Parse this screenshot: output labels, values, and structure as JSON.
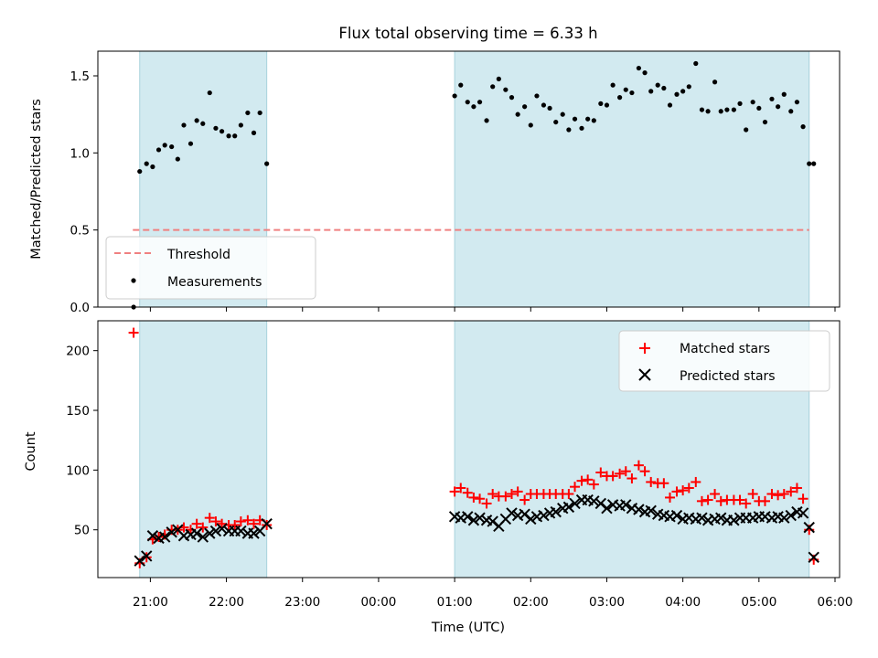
{
  "chart_data": {
    "type": "scatter",
    "title": "Flux total observing time = 6.33 h",
    "xlabel": "Time (UTC)",
    "x_ticks": [
      "21:00",
      "22:00",
      "23:00",
      "00:00",
      "01:00",
      "02:00",
      "03:00",
      "04:00",
      "05:00",
      "06:00"
    ],
    "xlim_hours": [
      20.31,
      30.06
    ],
    "shaded_spans_hours": [
      [
        20.86,
        22.53
      ],
      [
        25.0,
        29.66
      ]
    ],
    "span_color": "#d2eaf0",
    "top": {
      "ylabel": "Matched/Predicted stars",
      "ylim": [
        0,
        1.66
      ],
      "y_ticks": [
        0.0,
        0.5,
        1.0,
        1.5
      ],
      "y_tick_labels": [
        "0.0",
        "0.5",
        "1.0",
        "1.5"
      ],
      "threshold": {
        "name": "Threshold",
        "value": 0.5,
        "x_start": 20.77,
        "x_end": 29.66,
        "color": "#f08080"
      },
      "measurements": {
        "name": "Measurements",
        "color": "#000000",
        "points": [
          [
            20.78,
            0.0
          ],
          [
            20.86,
            0.88
          ],
          [
            20.95,
            0.93
          ],
          [
            21.03,
            0.91
          ],
          [
            21.11,
            1.02
          ],
          [
            21.19,
            1.05
          ],
          [
            21.28,
            1.04
          ],
          [
            21.36,
            0.96
          ],
          [
            21.44,
            1.18
          ],
          [
            21.53,
            1.06
          ],
          [
            21.61,
            1.21
          ],
          [
            21.69,
            1.19
          ],
          [
            21.78,
            1.39
          ],
          [
            21.86,
            1.16
          ],
          [
            21.94,
            1.14
          ],
          [
            22.03,
            1.11
          ],
          [
            22.11,
            1.11
          ],
          [
            22.19,
            1.18
          ],
          [
            22.28,
            1.26
          ],
          [
            22.36,
            1.13
          ],
          [
            22.44,
            1.26
          ],
          [
            22.53,
            0.93
          ],
          [
            25.0,
            1.37
          ],
          [
            25.08,
            1.44
          ],
          [
            25.17,
            1.33
          ],
          [
            25.25,
            1.3
          ],
          [
            25.33,
            1.33
          ],
          [
            25.42,
            1.21
          ],
          [
            25.5,
            1.43
          ],
          [
            25.58,
            1.48
          ],
          [
            25.67,
            1.41
          ],
          [
            25.75,
            1.36
          ],
          [
            25.83,
            1.25
          ],
          [
            25.92,
            1.3
          ],
          [
            26.0,
            1.18
          ],
          [
            26.08,
            1.37
          ],
          [
            26.17,
            1.31
          ],
          [
            26.25,
            1.29
          ],
          [
            26.33,
            1.2
          ],
          [
            26.42,
            1.25
          ],
          [
            26.5,
            1.15
          ],
          [
            26.58,
            1.22
          ],
          [
            26.67,
            1.16
          ],
          [
            26.75,
            1.22
          ],
          [
            26.83,
            1.21
          ],
          [
            26.92,
            1.32
          ],
          [
            27.0,
            1.31
          ],
          [
            27.08,
            1.44
          ],
          [
            27.17,
            1.36
          ],
          [
            27.25,
            1.41
          ],
          [
            27.33,
            1.39
          ],
          [
            27.42,
            1.55
          ],
          [
            27.5,
            1.52
          ],
          [
            27.58,
            1.4
          ],
          [
            27.67,
            1.44
          ],
          [
            27.75,
            1.42
          ],
          [
            27.83,
            1.31
          ],
          [
            27.92,
            1.38
          ],
          [
            28.0,
            1.4
          ],
          [
            28.08,
            1.43
          ],
          [
            28.17,
            1.58
          ],
          [
            28.25,
            1.28
          ],
          [
            28.33,
            1.27
          ],
          [
            28.42,
            1.46
          ],
          [
            28.5,
            1.27
          ],
          [
            28.58,
            1.28
          ],
          [
            28.67,
            1.28
          ],
          [
            28.75,
            1.32
          ],
          [
            28.83,
            1.15
          ],
          [
            28.92,
            1.33
          ],
          [
            29.0,
            1.29
          ],
          [
            29.08,
            1.2
          ],
          [
            29.17,
            1.35
          ],
          [
            29.25,
            1.3
          ],
          [
            29.33,
            1.38
          ],
          [
            29.42,
            1.27
          ],
          [
            29.5,
            1.33
          ],
          [
            29.58,
            1.17
          ],
          [
            29.66,
            0.93
          ],
          [
            29.72,
            0.93
          ]
        ]
      },
      "legend": {
        "placement": "lower-left",
        "entries": [
          "Threshold",
          "Measurements"
        ]
      }
    },
    "bottom": {
      "ylabel": "Count",
      "ylim": [
        10,
        225
      ],
      "y_ticks": [
        50,
        100,
        150,
        200
      ],
      "y_tick_labels": [
        "50",
        "100",
        "150",
        "200"
      ],
      "series": [
        {
          "name": "Matched stars",
          "marker": "plus",
          "color": "#ff0000",
          "points": [
            [
              20.78,
              215
            ],
            [
              20.86,
              22
            ],
            [
              20.95,
              27
            ],
            [
              21.03,
              42
            ],
            [
              21.11,
              44
            ],
            [
              21.19,
              46
            ],
            [
              21.28,
              50
            ],
            [
              21.36,
              50
            ],
            [
              21.44,
              52
            ],
            [
              21.53,
              50
            ],
            [
              21.61,
              55
            ],
            [
              21.69,
              52
            ],
            [
              21.78,
              60
            ],
            [
              21.86,
              57
            ],
            [
              21.94,
              55
            ],
            [
              22.03,
              54
            ],
            [
              22.11,
              54
            ],
            [
              22.19,
              57
            ],
            [
              22.28,
              58
            ],
            [
              22.36,
              55
            ],
            [
              22.44,
              58
            ],
            [
              22.53,
              54
            ],
            [
              25.0,
              82
            ],
            [
              25.08,
              85
            ],
            [
              25.17,
              81
            ],
            [
              25.25,
              77
            ],
            [
              25.33,
              76
            ],
            [
              25.42,
              72
            ],
            [
              25.5,
              80
            ],
            [
              25.58,
              78
            ],
            [
              25.67,
              78
            ],
            [
              25.75,
              80
            ],
            [
              25.83,
              82
            ],
            [
              25.92,
              75
            ],
            [
              26.0,
              80
            ],
            [
              26.08,
              80
            ],
            [
              26.17,
              80
            ],
            [
              26.25,
              80
            ],
            [
              26.33,
              80
            ],
            [
              26.42,
              80
            ],
            [
              26.5,
              80
            ],
            [
              26.58,
              86
            ],
            [
              26.67,
              91
            ],
            [
              26.75,
              92
            ],
            [
              26.83,
              88
            ],
            [
              26.92,
              98
            ],
            [
              27.0,
              95
            ],
            [
              27.08,
              95
            ],
            [
              27.17,
              97
            ],
            [
              27.25,
              99
            ],
            [
              27.33,
              93
            ],
            [
              27.42,
              104
            ],
            [
              27.5,
              99
            ],
            [
              27.58,
              90
            ],
            [
              27.67,
              89
            ],
            [
              27.75,
              89
            ],
            [
              27.83,
              77
            ],
            [
              27.92,
              82
            ],
            [
              28.0,
              83
            ],
            [
              28.08,
              85
            ],
            [
              28.17,
              90
            ],
            [
              28.25,
              74
            ],
            [
              28.33,
              75
            ],
            [
              28.42,
              80
            ],
            [
              28.5,
              74
            ],
            [
              28.58,
              75
            ],
            [
              28.67,
              75
            ],
            [
              28.75,
              75
            ],
            [
              28.83,
              72
            ],
            [
              28.92,
              80
            ],
            [
              29.0,
              74
            ],
            [
              29.08,
              74
            ],
            [
              29.17,
              80
            ],
            [
              29.25,
              79
            ],
            [
              29.33,
              80
            ],
            [
              29.42,
              82
            ],
            [
              29.5,
              85
            ],
            [
              29.58,
              76
            ],
            [
              29.66,
              50
            ],
            [
              29.72,
              25
            ]
          ]
        },
        {
          "name": "Predicted stars",
          "marker": "x",
          "color": "#000000",
          "points": [
            [
              20.86,
              24
            ],
            [
              20.95,
              28
            ],
            [
              21.03,
              45
            ],
            [
              21.11,
              43
            ],
            [
              21.19,
              44
            ],
            [
              21.28,
              48
            ],
            [
              21.36,
              50
            ],
            [
              21.44,
              45
            ],
            [
              21.53,
              46
            ],
            [
              21.61,
              47
            ],
            [
              21.69,
              44
            ],
            [
              21.78,
              47
            ],
            [
              21.86,
              49
            ],
            [
              21.94,
              51
            ],
            [
              22.03,
              49
            ],
            [
              22.11,
              49
            ],
            [
              22.19,
              49
            ],
            [
              22.28,
              47
            ],
            [
              22.36,
              47
            ],
            [
              22.44,
              49
            ],
            [
              22.53,
              55
            ],
            [
              25.0,
              61
            ],
            [
              25.08,
              60
            ],
            [
              25.17,
              61
            ],
            [
              25.25,
              58
            ],
            [
              25.33,
              60
            ],
            [
              25.42,
              58
            ],
            [
              25.5,
              57
            ],
            [
              25.58,
              53
            ],
            [
              25.67,
              59
            ],
            [
              25.75,
              64
            ],
            [
              25.83,
              62
            ],
            [
              25.92,
              63
            ],
            [
              26.0,
              59
            ],
            [
              26.08,
              61
            ],
            [
              26.17,
              62
            ],
            [
              26.25,
              64
            ],
            [
              26.33,
              65
            ],
            [
              26.42,
              68
            ],
            [
              26.5,
              69
            ],
            [
              26.58,
              72
            ],
            [
              26.67,
              75
            ],
            [
              26.75,
              75
            ],
            [
              26.83,
              74
            ],
            [
              26.92,
              72
            ],
            [
              27.0,
              68
            ],
            [
              27.08,
              71
            ],
            [
              27.17,
              70
            ],
            [
              27.25,
              71
            ],
            [
              27.33,
              68
            ],
            [
              27.42,
              67
            ],
            [
              27.5,
              65
            ],
            [
              27.58,
              66
            ],
            [
              27.67,
              63
            ],
            [
              27.75,
              62
            ],
            [
              27.83,
              61
            ],
            [
              27.92,
              62
            ],
            [
              28.0,
              59
            ],
            [
              28.08,
              60
            ],
            [
              28.17,
              59
            ],
            [
              28.25,
              60
            ],
            [
              28.33,
              58
            ],
            [
              28.42,
              59
            ],
            [
              28.5,
              60
            ],
            [
              28.58,
              58
            ],
            [
              28.67,
              58
            ],
            [
              28.75,
              60
            ],
            [
              28.83,
              60
            ],
            [
              28.92,
              60
            ],
            [
              29.0,
              61
            ],
            [
              29.08,
              61
            ],
            [
              29.17,
              60
            ],
            [
              29.25,
              61
            ],
            [
              29.33,
              60
            ],
            [
              29.42,
              62
            ],
            [
              29.5,
              65
            ],
            [
              29.58,
              64
            ],
            [
              29.66,
              52
            ],
            [
              29.72,
              27
            ]
          ]
        }
      ],
      "legend": {
        "placement": "top-right",
        "entries": [
          "Matched stars",
          "Predicted stars"
        ]
      }
    }
  }
}
